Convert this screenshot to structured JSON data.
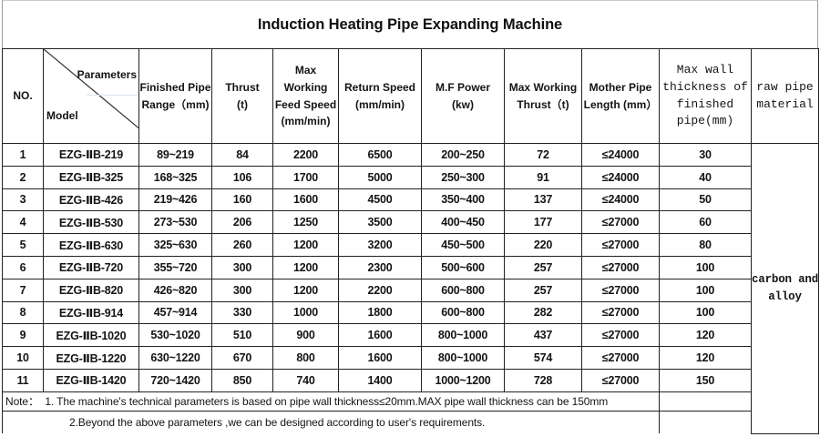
{
  "title": "Induction Heating Pipe Expanding Machine",
  "colors": {
    "border": "#222222",
    "text": "#141414",
    "background": "#ffffff"
  },
  "table": {
    "headers": {
      "no": "NO.",
      "corner_top": "Parameters",
      "corner_bottom": "Model",
      "finished_range": "Finished Pipe\nRange（mm)",
      "thrust": "Thrust\n(t)",
      "feed_speed": "Max Working\nFeed Speed\n(mm/min)",
      "return_speed": "Return Speed\n(mm/min)",
      "mf_power": "M.F Power\n(kw)",
      "max_thrust": "Max Working\nThrust（t)",
      "mother_length": "Mother Pipe\nLength (mm）",
      "max_wall": "Max wall\nthickness of\nfinished\npipe(mm)",
      "raw_material": "raw pipe\nmaterial"
    },
    "rows": [
      {
        "no": "1",
        "model": "EZG-ⅡB-219",
        "range": "89~219",
        "thrust": "84",
        "feed": "2200",
        "ret": "6500",
        "power": "200~250",
        "max_thrust": "72",
        "mother": "≤24000",
        "max_wall": "30"
      },
      {
        "no": "2",
        "model": "EZG-ⅡB-325",
        "range": "168~325",
        "thrust": "106",
        "feed": "1700",
        "ret": "5000",
        "power": "250~300",
        "max_thrust": "91",
        "mother": "≤24000",
        "max_wall": "40"
      },
      {
        "no": "3",
        "model": "EZG-ⅡB-426",
        "range": "219~426",
        "thrust": "160",
        "feed": "1600",
        "ret": "4500",
        "power": "350~400",
        "max_thrust": "137",
        "mother": "≤24000",
        "max_wall": "50"
      },
      {
        "no": "4",
        "model": "EZG-ⅡB-530",
        "range": "273~530",
        "thrust": "206",
        "feed": "1250",
        "ret": "3500",
        "power": "400~450",
        "max_thrust": "177",
        "mother": "≤27000",
        "max_wall": "60"
      },
      {
        "no": "5",
        "model": "EZG-ⅡB-630",
        "range": "325~630",
        "thrust": "260",
        "feed": "1200",
        "ret": "3200",
        "power": "450~500",
        "max_thrust": "220",
        "mother": "≤27000",
        "max_wall": "80"
      },
      {
        "no": "6",
        "model": "EZG-ⅡB-720",
        "range": "355~720",
        "thrust": "300",
        "feed": "1200",
        "ret": "2300",
        "power": "500~600",
        "max_thrust": "257",
        "mother": "≤27000",
        "max_wall": "100"
      },
      {
        "no": "7",
        "model": "EZG-ⅡB-820",
        "range": "426~820",
        "thrust": "300",
        "feed": "1200",
        "ret": "2200",
        "power": "600~800",
        "max_thrust": "257",
        "mother": "≤27000",
        "max_wall": "100"
      },
      {
        "no": "8",
        "model": "EZG-ⅡB-914",
        "range": "457~914",
        "thrust": "330",
        "feed": "1000",
        "ret": "1800",
        "power": "600~800",
        "max_thrust": "282",
        "mother": "≤27000",
        "max_wall": "100"
      },
      {
        "no": "9",
        "model": "EZG-ⅡB-1020",
        "range": "530~1020",
        "thrust": "510",
        "feed": "900",
        "ret": "1600",
        "power": "800~1000",
        "max_thrust": "437",
        "mother": "≤27000",
        "max_wall": "120"
      },
      {
        "no": "10",
        "model": "EZG-ⅡB-1220",
        "range": "630~1220",
        "thrust": "670",
        "feed": "800",
        "ret": "1600",
        "power": "800~1000",
        "max_thrust": "574",
        "mother": "≤27000",
        "max_wall": "120"
      },
      {
        "no": "11",
        "model": "EZG-ⅡB-1420",
        "range": "720~1420",
        "thrust": "850",
        "feed": "740",
        "ret": "1400",
        "power": "1000~1200",
        "max_thrust": "728",
        "mother": "≤27000",
        "max_wall": "150"
      }
    ],
    "raw_material": "carbon and\nalloy",
    "notes": [
      "Note：  1. The machine's technical parameters is based on pipe wall thickness≤20mm.MAX pipe wall thickness can be 150mm",
      "2.Beyond the above parameters ,we can be designed according to user's requirements."
    ]
  }
}
